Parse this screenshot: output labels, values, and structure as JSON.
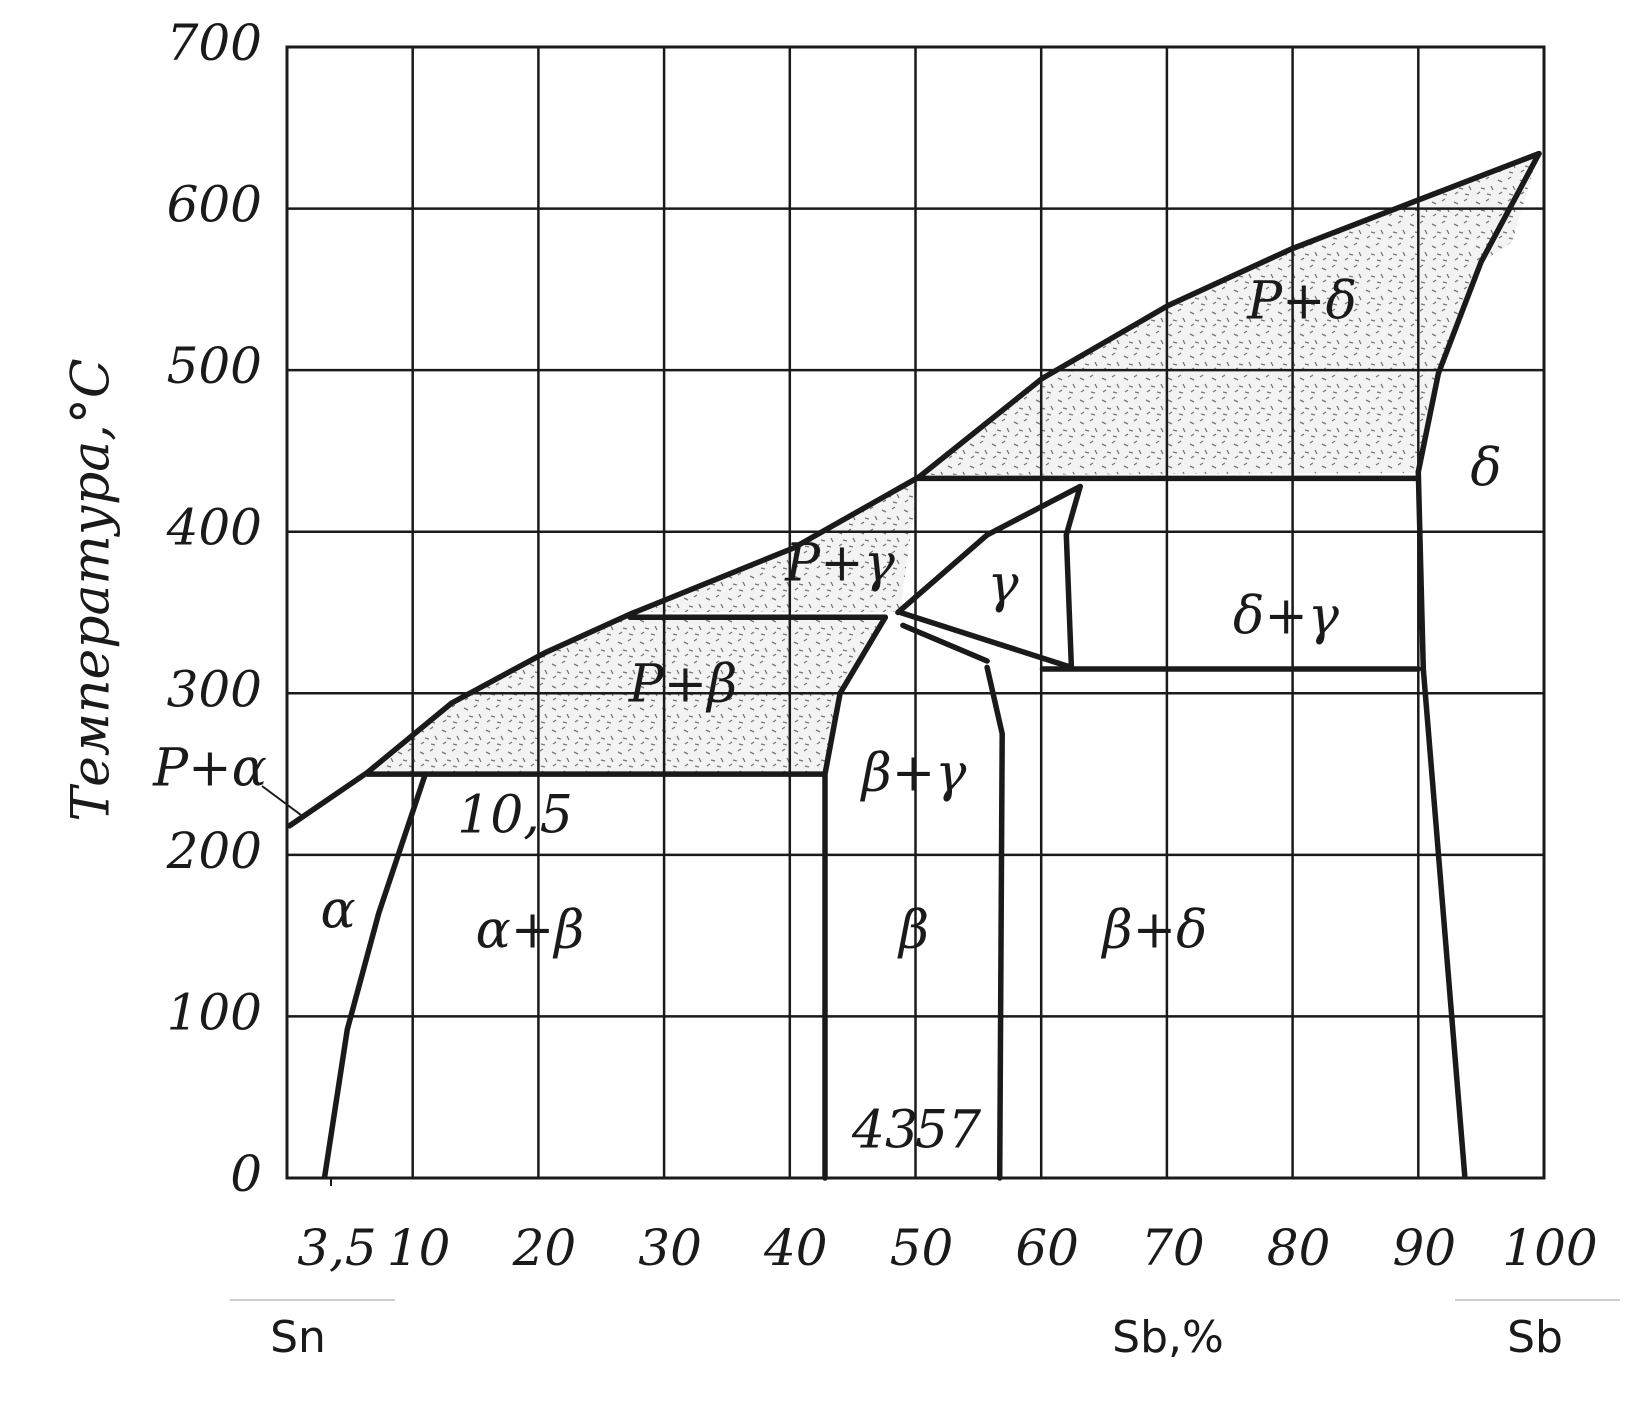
{
  "chart_data": {
    "type": "phase-diagram",
    "ylabel": "Температура,°С",
    "xlabel": "Sb,%",
    "x_start_label": "Sn",
    "x_end_label": "Sb",
    "xlim": [
      0,
      100
    ],
    "ylim": [
      0,
      700
    ],
    "xticks": [
      {
        "value": 3.5,
        "label": "3,5"
      },
      10,
      20,
      30,
      40,
      50,
      60,
      70,
      80,
      90,
      100
    ],
    "yticks": [
      0,
      100,
      200,
      300,
      400,
      500,
      600,
      700
    ],
    "grid": true,
    "color": "#1a1a1a",
    "boundaries": [
      {
        "x": [
          0.2,
          6.4,
          13.1,
          20.5,
          27.3,
          40.3,
          50.3,
          60.1,
          70.1,
          79.9,
          89.9,
          99.6
        ],
        "y": [
          218,
          251,
          294,
          325,
          349,
          390,
          434,
          495,
          540,
          575,
          605,
          634
        ]
      },
      {
        "x": [
          6.4,
          42.6
        ],
        "y": [
          250,
          250
        ]
      },
      {
        "x": [
          11,
          7.3,
          4.8,
          3
        ],
        "y": [
          250,
          164,
          92,
          1
        ]
      },
      {
        "x": [
          27.3,
          47.6
        ],
        "y": [
          347,
          347
        ]
      },
      {
        "x": [
          47.6,
          44,
          42.8,
          42.8
        ],
        "y": [
          347,
          300,
          250,
          0
        ]
      },
      {
        "x": [
          55.7,
          56.9,
          56.7
        ],
        "y": [
          316,
          275,
          0
        ]
      },
      {
        "x": [
          48.6,
          55.7,
          63.1
        ],
        "y": [
          350,
          398,
          428
        ]
      },
      {
        "x": [
          50.3,
          90
        ],
        "y": [
          433,
          433
        ]
      },
      {
        "x": [
          63.1,
          62,
          62.4
        ],
        "y": [
          428,
          398,
          316
        ]
      },
      {
        "x": [
          60.1,
          90
        ],
        "y": [
          315,
          315
        ]
      },
      {
        "x": [
          48.8,
          62.4
        ],
        "y": [
          350,
          316
        ]
      },
      {
        "x": [
          49,
          55.7
        ],
        "y": [
          342,
          320
        ]
      },
      {
        "x": [
          90,
          90.4,
          93.7
        ],
        "y": [
          437,
          315,
          1
        ]
      },
      {
        "x": [
          90,
          91.6,
          95,
          99.6
        ],
        "y": [
          437,
          498,
          567,
          634
        ]
      }
    ],
    "annotations": [
      "α",
      "α+β",
      "β",
      "β+δ",
      "β+γ",
      "γ",
      "δ+γ",
      "δ",
      "P+δ",
      "P+γ",
      "P+β",
      "P+α",
      "10,5",
      "43",
      "57"
    ]
  }
}
